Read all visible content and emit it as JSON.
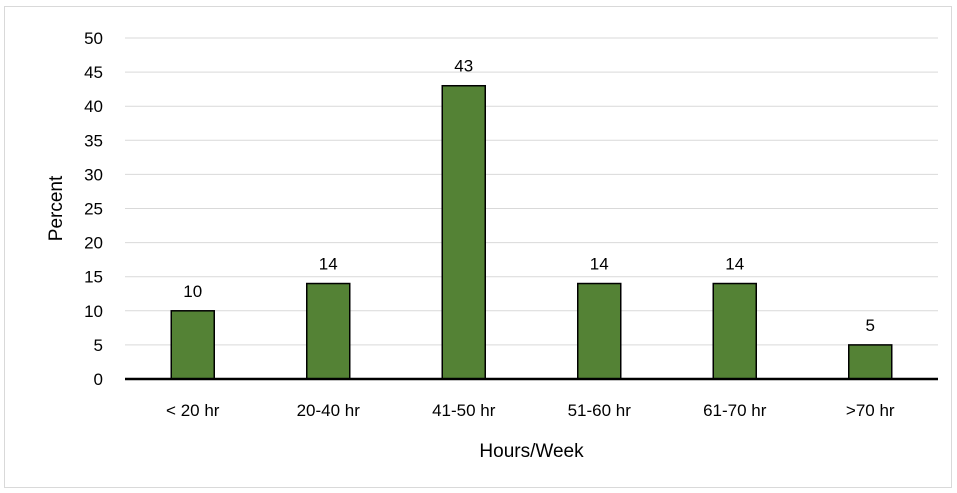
{
  "chart_data": {
    "type": "bar",
    "categories": [
      "< 20 hr",
      "20-40 hr",
      "41-50 hr",
      "51-60 hr",
      "61-70 hr",
      ">70 hr"
    ],
    "values": [
      10,
      14,
      43,
      14,
      14,
      5
    ],
    "data_labels": [
      "10",
      "14",
      "43",
      "14",
      "14",
      "5"
    ],
    "xlabel": "Hours/Week",
    "ylabel": "Percent",
    "ylim": [
      0,
      50
    ],
    "yticks": [
      0,
      5,
      10,
      15,
      20,
      25,
      30,
      35,
      40,
      45,
      50
    ],
    "grid": "horizontal",
    "bar_color": "#548235",
    "bar_edge_color": "#000000",
    "grid_color": "#d9d9d9"
  }
}
